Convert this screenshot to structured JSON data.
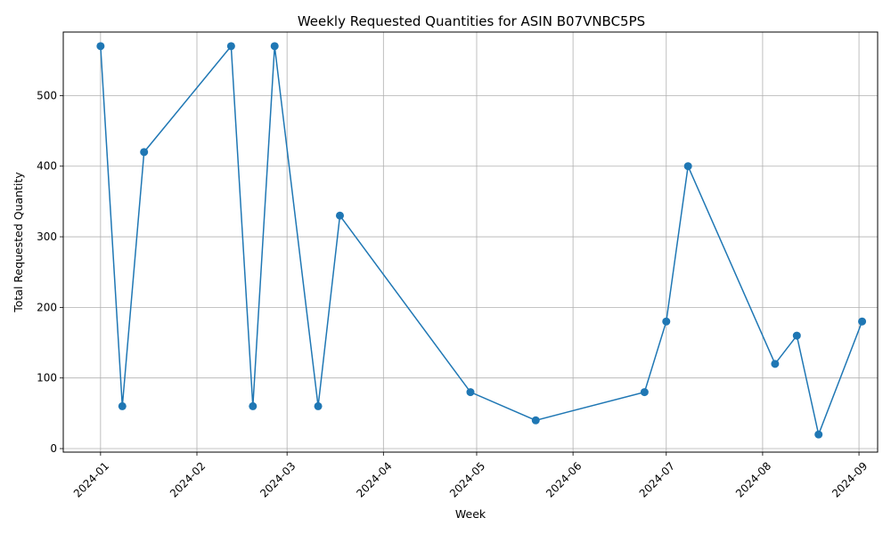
{
  "chart_data": {
    "type": "line",
    "title": "Weekly Requested Quantities for ASIN B07VNBC5PS",
    "xlabel": "Week",
    "ylabel": "Total Requested Quantity",
    "x_ticks": [
      "2024-01",
      "2024-02",
      "2024-03",
      "2024-04",
      "2024-05",
      "2024-06",
      "2024-07",
      "2024-08",
      "2024-09"
    ],
    "y_ticks": [
      0,
      100,
      200,
      300,
      400,
      500
    ],
    "xlim": [
      "2023-12-20",
      "2024-09-07"
    ],
    "ylim": [
      -5,
      590
    ],
    "grid": true,
    "line_color": "#1f77b4",
    "series": [
      {
        "x": [
          "2024-01-01",
          "2024-01-08",
          "2024-01-15",
          "2024-02-12",
          "2024-02-19",
          "2024-02-26",
          "2024-03-11",
          "2024-03-18",
          "2024-04-29",
          "2024-05-20",
          "2024-06-24",
          "2024-07-01",
          "2024-07-08",
          "2024-08-05",
          "2024-08-12",
          "2024-08-19",
          "2024-09-02"
        ],
        "y": [
          570,
          60,
          420,
          570,
          60,
          570,
          60,
          330,
          80,
          40,
          80,
          180,
          400,
          120,
          160,
          20,
          180
        ]
      }
    ]
  }
}
